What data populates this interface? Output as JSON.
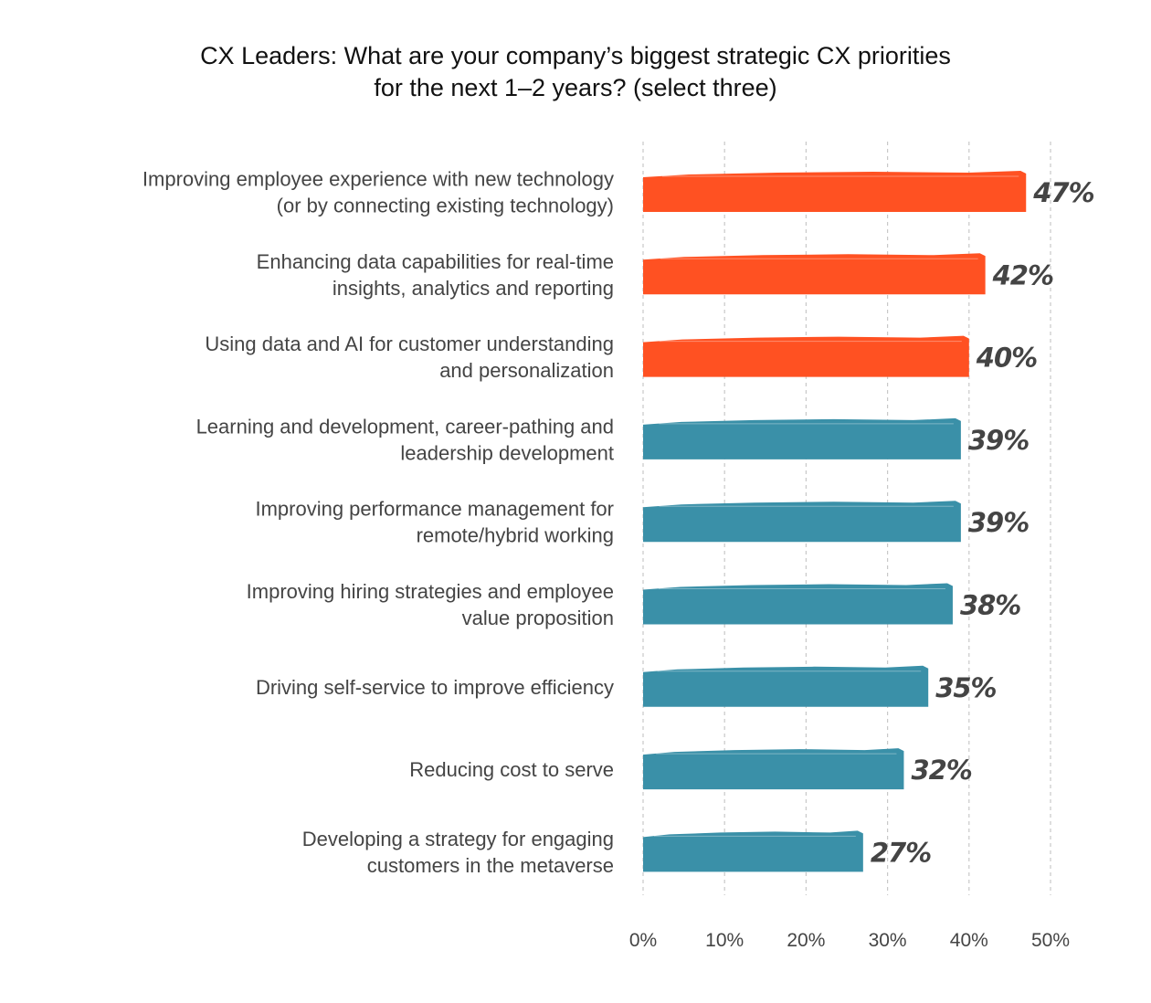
{
  "chart_data": {
    "type": "bar",
    "orientation": "horizontal",
    "title": [
      "CX Leaders: What are your company’s biggest strategic CX priorities",
      "for the next 1–2 years? (select three)"
    ],
    "categories": [
      [
        "Improving employee experience with new technology",
        "(or by connecting existing technology)"
      ],
      [
        "Enhancing data capabilities for real-time",
        "insights, analytics and reporting"
      ],
      [
        "Using data and AI for customer understanding",
        "and personalization"
      ],
      [
        "Learning and development, career-pathing and",
        "leadership development"
      ],
      [
        "Improving performance management for",
        "remote/hybrid working"
      ],
      [
        "Improving hiring strategies and employee",
        "value proposition"
      ],
      [
        "Driving self-service to improve efficiency"
      ],
      [
        "Reducing cost to serve"
      ],
      [
        "Developing a strategy for engaging",
        "customers in the metaverse"
      ]
    ],
    "values": [
      47,
      42,
      40,
      39,
      39,
      38,
      35,
      32,
      27
    ],
    "value_labels": [
      "47%",
      "42%",
      "40%",
      "39%",
      "39%",
      "38%",
      "35%",
      "32%",
      "27%"
    ],
    "highlighted_count": 3,
    "colors": {
      "highlight": "#ff5122",
      "default": "#3a90a8",
      "grid": "#c8c8c8",
      "text": "#444444"
    },
    "xlim": [
      0,
      50
    ],
    "xticks": [
      0,
      10,
      20,
      30,
      40,
      50
    ],
    "xtick_labels": [
      "0%",
      "10%",
      "20%",
      "30%",
      "40%",
      "50%"
    ],
    "grid": "vertical dashed",
    "legend": "none"
  }
}
